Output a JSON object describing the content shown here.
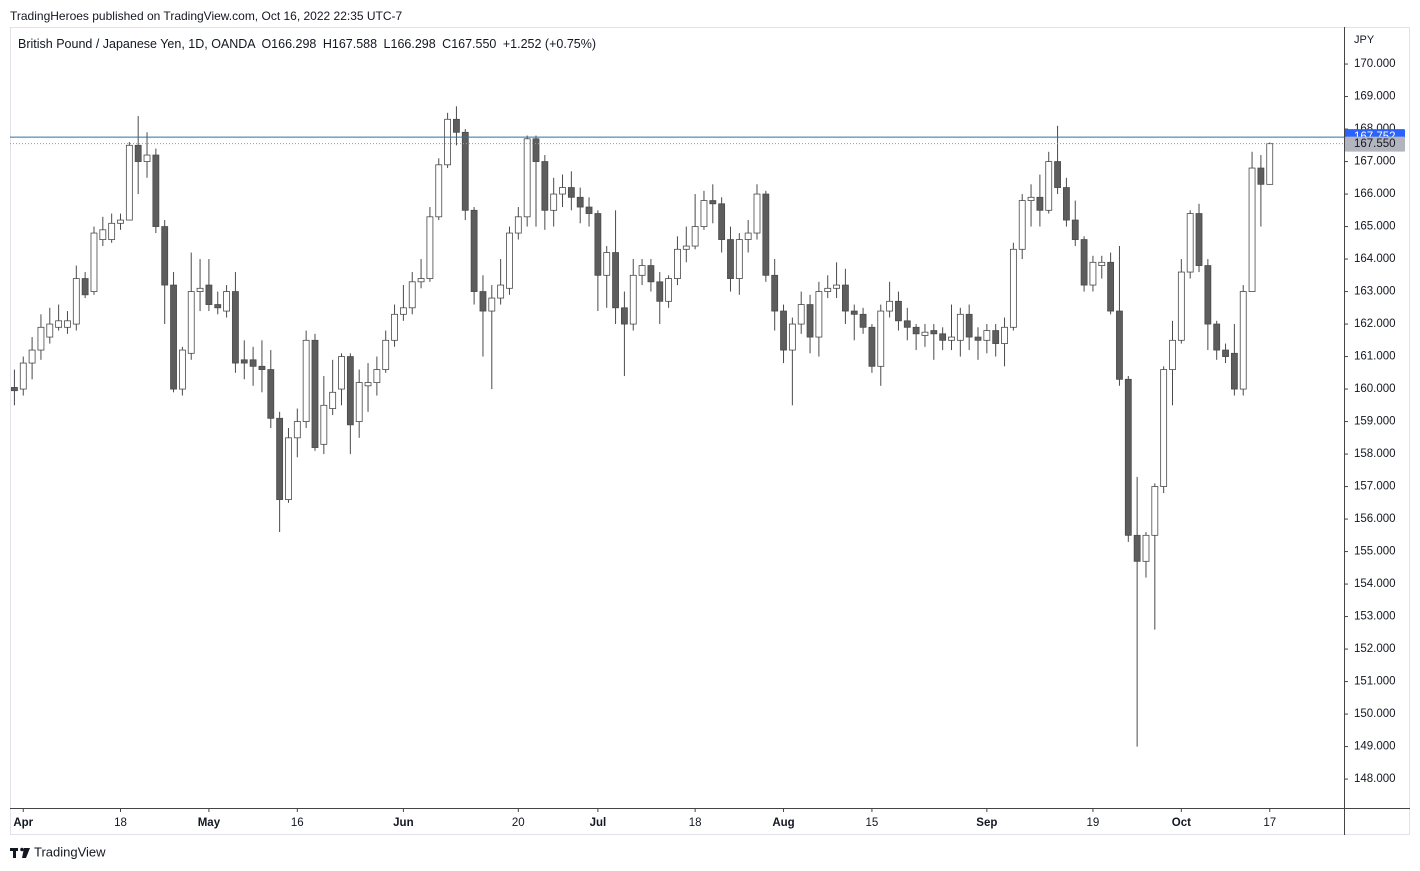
{
  "header": "TradingHeroes published on TradingView.com, Oct 16, 2022 22:35 UTC-7",
  "footer": "TradingView",
  "chart_data": {
    "type": "candlestick",
    "legend": {
      "symbol": "British Pound / Japanese Yen, 1D, OANDA",
      "open": "O166.298",
      "high": "H167.588",
      "low": "L166.298",
      "close": "C167.550",
      "change": "+1.252 (+0.75%)"
    },
    "axis_unit": "JPY",
    "up_color": "#ffffff",
    "down_color": "#5d5d5d",
    "border_color": "#4a4a4a",
    "open": [
      160.05,
      160.0,
      160.8,
      161.2,
      161.6,
      161.9,
      161.9,
      162.0,
      163.4,
      163.0,
      164.6,
      164.6,
      165.1,
      165.2,
      167.5,
      167.0,
      167.2,
      165.0,
      163.2,
      160.0,
      161.1,
      163.0,
      163.2,
      162.6,
      162.4,
      163.0,
      160.9,
      160.9,
      160.7,
      160.6,
      159.1,
      156.6,
      158.5,
      159.0,
      161.5,
      158.3,
      159.4,
      160.0,
      161.0,
      159.0,
      160.1,
      160.2,
      160.6,
      161.5,
      162.3,
      162.5,
      163.3,
      163.4,
      165.3,
      166.9,
      168.3,
      167.9,
      165.5,
      163.0,
      162.4,
      162.8,
      163.1,
      164.8,
      165.3,
      167.7,
      167.0,
      165.5,
      166.0,
      166.2,
      165.9,
      165.6,
      165.4,
      163.5,
      164.2,
      162.5,
      162.0,
      163.5,
      163.8,
      163.3,
      162.7,
      163.4,
      164.3,
      164.4,
      165.0,
      165.8,
      165.7,
      164.6,
      163.4,
      164.6,
      164.8,
      166.0,
      163.5,
      162.4,
      161.2,
      162.0,
      162.6,
      161.6,
      163.0,
      163.1,
      163.2,
      162.4,
      162.3,
      161.9,
      160.7,
      162.4,
      162.7,
      162.1,
      161.9,
      161.65,
      161.8,
      161.7,
      161.5,
      161.5,
      162.3,
      161.6,
      161.5,
      161.8,
      161.4,
      161.9,
      164.3,
      165.8,
      165.9,
      165.5,
      167.0,
      166.2,
      165.2,
      164.6,
      163.2,
      163.8,
      163.9,
      162.4,
      160.3,
      155.5,
      154.7,
      155.5,
      157.0,
      160.6,
      161.5,
      163.6,
      165.4,
      163.8,
      162.0,
      161.2,
      161.1,
      160.0,
      163.0,
      166.8,
      166.298
    ],
    "high": [
      160.6,
      161.0,
      161.6,
      162.3,
      162.5,
      162.6,
      162.4,
      163.8,
      163.6,
      165.0,
      165.3,
      165.4,
      165.4,
      167.6,
      168.4,
      167.9,
      167.4,
      165.2,
      163.6,
      161.3,
      164.2,
      164.0,
      164.0,
      163.0,
      163.2,
      163.6,
      161.5,
      161.3,
      161.5,
      161.2,
      159.3,
      158.8,
      159.4,
      161.8,
      161.7,
      160.4,
      160.9,
      161.1,
      161.1,
      160.6,
      160.8,
      161.0,
      161.8,
      162.6,
      163.2,
      163.6,
      164.0,
      165.6,
      167.1,
      168.5,
      168.7,
      168.0,
      165.6,
      163.5,
      163.2,
      164.0,
      165.0,
      165.6,
      167.8,
      167.8,
      167.2,
      166.5,
      166.6,
      166.7,
      166.2,
      165.9,
      165.5,
      164.4,
      165.5,
      163.0,
      164.0,
      164.0,
      164.0,
      163.6,
      163.5,
      164.7,
      165.0,
      166.0,
      166.1,
      166.3,
      165.9,
      165.0,
      164.8,
      165.2,
      166.3,
      166.1,
      164.0,
      162.6,
      162.2,
      163.0,
      162.9,
      163.3,
      163.5,
      163.9,
      163.7,
      162.6,
      162.5,
      162.0,
      162.6,
      163.3,
      163.0,
      162.5,
      162.0,
      162.0,
      162.0,
      161.9,
      162.6,
      162.5,
      162.6,
      161.9,
      162.0,
      162.0,
      162.2,
      164.5,
      166.0,
      166.3,
      166.6,
      167.3,
      168.1,
      166.5,
      165.8,
      164.7,
      164.1,
      164.1,
      164.2,
      164.4,
      160.4,
      157.3,
      155.6,
      157.1,
      160.7,
      162.1,
      164.0,
      165.5,
      165.7,
      164.0,
      162.1,
      161.4,
      162.0,
      163.2,
      167.3,
      167.2,
      167.588
    ],
    "low": [
      159.5,
      159.8,
      160.3,
      160.9,
      161.4,
      161.8,
      161.7,
      161.8,
      162.8,
      162.9,
      164.4,
      164.5,
      164.9,
      165.2,
      166.0,
      166.5,
      164.8,
      162.0,
      159.9,
      159.8,
      160.9,
      162.4,
      162.4,
      162.3,
      162.2,
      160.5,
      160.3,
      160.1,
      159.9,
      158.8,
      155.6,
      156.5,
      157.9,
      158.8,
      158.1,
      158.0,
      159.2,
      159.5,
      158.0,
      158.5,
      159.3,
      159.8,
      160.5,
      161.3,
      162.1,
      162.3,
      163.1,
      163.3,
      165.2,
      166.8,
      167.5,
      165.2,
      162.6,
      161.0,
      160.0,
      162.6,
      162.9,
      164.6,
      165.0,
      165.0,
      164.9,
      165.0,
      165.6,
      165.5,
      165.1,
      165.0,
      162.4,
      162.5,
      162.0,
      160.4,
      161.8,
      163.2,
      163.0,
      162.0,
      162.5,
      163.2,
      163.9,
      164.3,
      164.9,
      165.1,
      164.2,
      163.0,
      162.9,
      164.2,
      164.6,
      163.3,
      161.8,
      160.8,
      159.5,
      161.7,
      161.1,
      161.0,
      162.8,
      162.8,
      162.0,
      161.5,
      161.7,
      160.5,
      160.1,
      162.2,
      161.8,
      161.5,
      161.2,
      161.3,
      160.9,
      161.2,
      161.2,
      161.0,
      161.2,
      160.9,
      161.1,
      161.0,
      160.7,
      161.8,
      164.0,
      165.0,
      165.0,
      165.4,
      166.0,
      165.0,
      164.4,
      163.0,
      163.0,
      163.4,
      162.3,
      160.1,
      155.3,
      149.0,
      154.2,
      152.6,
      156.8,
      159.5,
      161.4,
      163.4,
      163.6,
      161.2,
      160.9,
      160.8,
      159.8,
      159.8,
      163.0,
      165.0,
      166.298
    ],
    "close": [
      159.95,
      160.8,
      161.2,
      161.9,
      162.0,
      162.1,
      162.1,
      163.4,
      162.9,
      164.8,
      164.9,
      165.1,
      165.2,
      167.5,
      167.0,
      167.2,
      165.0,
      163.2,
      160.0,
      161.2,
      163.0,
      163.1,
      162.6,
      162.5,
      163.0,
      160.8,
      160.8,
      160.7,
      160.6,
      159.1,
      156.6,
      158.5,
      159.0,
      161.5,
      158.2,
      159.5,
      159.9,
      161.0,
      158.9,
      160.2,
      160.2,
      160.6,
      161.5,
      162.3,
      162.5,
      163.3,
      163.4,
      165.3,
      166.9,
      168.3,
      167.9,
      165.5,
      163.0,
      162.4,
      162.8,
      163.2,
      164.8,
      165.3,
      167.7,
      167.0,
      165.5,
      166.0,
      166.2,
      165.9,
      165.6,
      165.4,
      163.5,
      164.2,
      162.5,
      162.0,
      163.5,
      163.8,
      163.3,
      162.7,
      163.4,
      164.3,
      164.4,
      165.0,
      165.8,
      165.7,
      164.6,
      163.4,
      164.6,
      164.8,
      166.0,
      163.5,
      162.4,
      161.2,
      162.0,
      162.6,
      161.6,
      163.0,
      163.1,
      163.2,
      162.4,
      162.3,
      161.9,
      160.7,
      162.4,
      162.7,
      162.1,
      161.9,
      161.7,
      161.75,
      161.7,
      161.5,
      161.6,
      162.3,
      161.6,
      161.5,
      161.8,
      161.4,
      161.9,
      164.3,
      165.8,
      165.9,
      165.5,
      167.0,
      166.2,
      165.2,
      164.6,
      163.2,
      163.9,
      163.9,
      162.4,
      160.3,
      155.5,
      154.7,
      155.5,
      157.0,
      160.6,
      161.5,
      163.6,
      165.4,
      163.8,
      162.0,
      161.2,
      161.0,
      160.0,
      163.0,
      166.8,
      166.3,
      167.55
    ],
    "xlim": [
      -0.5,
      150.4
    ],
    "xticks": [
      {
        "value": 1,
        "label": "Apr"
      },
      {
        "value": 12,
        "label": "18"
      },
      {
        "value": 22,
        "label": "May"
      },
      {
        "value": 32,
        "label": "16"
      },
      {
        "value": 44,
        "label": "Jun"
      },
      {
        "value": 57,
        "label": "20"
      },
      {
        "value": 66,
        "label": "Jul"
      },
      {
        "value": 77,
        "label": "18"
      },
      {
        "value": 87,
        "label": "Aug"
      },
      {
        "value": 97,
        "label": "15"
      },
      {
        "value": 110,
        "label": "Sep"
      },
      {
        "value": 122,
        "label": "19"
      },
      {
        "value": 132,
        "label": "Oct"
      },
      {
        "value": 142,
        "label": "17"
      }
    ],
    "ylim": [
      147.11,
      171.14
    ],
    "yticks": [
      {
        "value": 148,
        "label": "148.000"
      },
      {
        "value": 149,
        "label": "149.000"
      },
      {
        "value": 150,
        "label": "150.000"
      },
      {
        "value": 151,
        "label": "151.000"
      },
      {
        "value": 152,
        "label": "152.000"
      },
      {
        "value": 153,
        "label": "153.000"
      },
      {
        "value": 154,
        "label": "154.000"
      },
      {
        "value": 155,
        "label": "155.000"
      },
      {
        "value": 156,
        "label": "156.000"
      },
      {
        "value": 157,
        "label": "157.000"
      },
      {
        "value": 158,
        "label": "158.000"
      },
      {
        "value": 159,
        "label": "159.000"
      },
      {
        "value": 160,
        "label": "160.000"
      },
      {
        "value": 161,
        "label": "161.000"
      },
      {
        "value": 162,
        "label": "162.000"
      },
      {
        "value": 163,
        "label": "163.000"
      },
      {
        "value": 164,
        "label": "164.000"
      },
      {
        "value": 165,
        "label": "165.000"
      },
      {
        "value": 166,
        "label": "166.000"
      },
      {
        "value": 167,
        "label": "167.000"
      },
      {
        "value": 168,
        "label": "168.000"
      },
      {
        "value": 169,
        "label": "169.000"
      },
      {
        "value": 170,
        "label": "170.000"
      }
    ],
    "hline": {
      "value": 167.752,
      "label": "167.752",
      "color": "#2f6fa8",
      "tag_color": "#2962ff"
    },
    "last_price": {
      "value": 167.55,
      "label": "167.550",
      "color": "#9a9a9a"
    }
  }
}
